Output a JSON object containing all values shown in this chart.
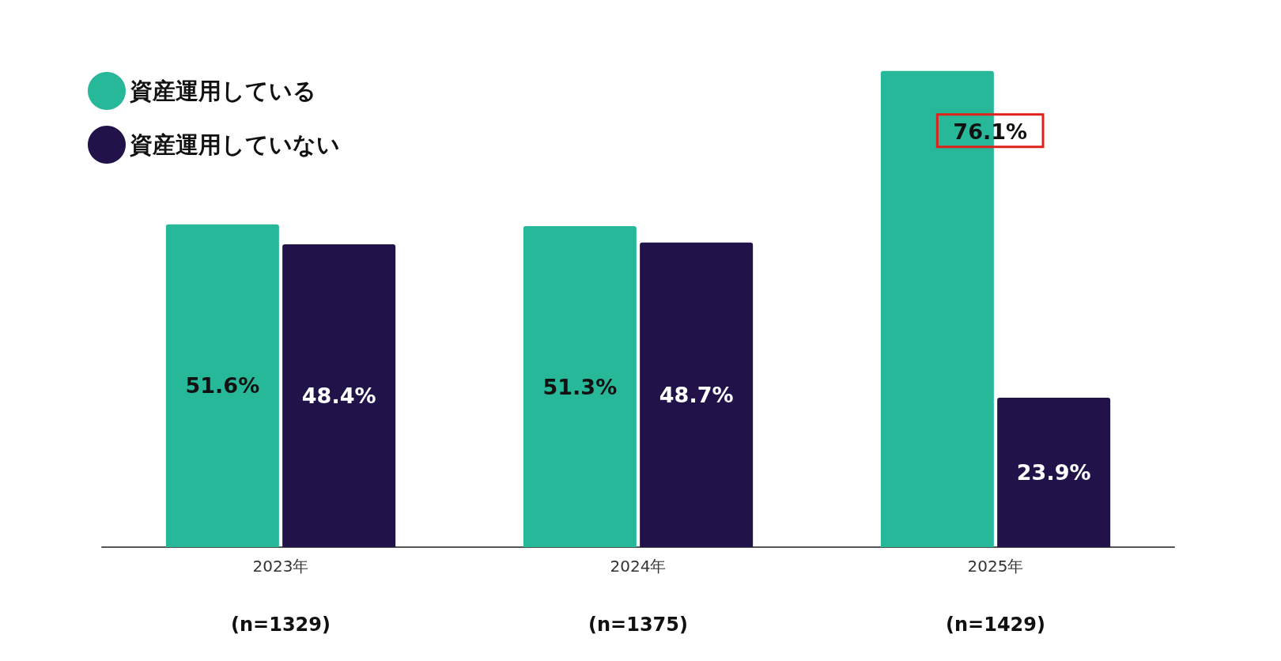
{
  "chart_data": {
    "type": "bar",
    "categories": [
      "2023年",
      "2024年",
      "2025年"
    ],
    "series": [
      {
        "name": "資産運用している",
        "color": "#26b899",
        "values": [
          51.6,
          51.3,
          76.1
        ],
        "value_labels": [
          "51.6%",
          "51.3%",
          "76.1%"
        ]
      },
      {
        "name": "資産運用していない",
        "color": "#21134a",
        "values": [
          48.4,
          48.7,
          23.9
        ],
        "value_labels": [
          "48.4%",
          "48.7%",
          "23.9%"
        ]
      }
    ],
    "legend": "top left",
    "annotations": [
      "(n=1329)",
      "(n=1375)",
      "(n=1429)"
    ]
  }
}
